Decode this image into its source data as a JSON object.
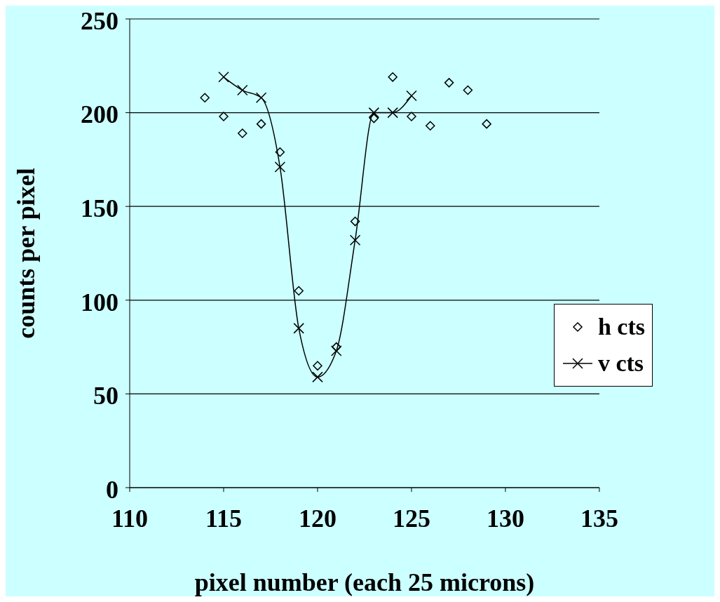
{
  "chart_data": {
    "type": "scatter",
    "xlabel": "pixel number (each 25 microns)",
    "ylabel": "counts per pixel",
    "xlim": [
      110,
      135
    ],
    "xticks": [
      110,
      115,
      120,
      125,
      130,
      135
    ],
    "ylim": [
      0,
      250
    ],
    "yticks": [
      0,
      50,
      100,
      150,
      200,
      250
    ],
    "grid": "y",
    "legend": "right",
    "series": [
      {
        "name": "h cts",
        "type": "scatter",
        "marker": "diamond",
        "color": "#000000",
        "x": [
          114,
          115,
          116,
          117,
          118,
          119,
          120,
          121,
          122,
          123,
          124,
          125,
          126,
          127,
          128,
          129
        ],
        "values": [
          208,
          198,
          189,
          194,
          179,
          105,
          65,
          75,
          142,
          197,
          219,
          198,
          193,
          216,
          212,
          194
        ]
      },
      {
        "name": "v cts",
        "type": "line",
        "marker": "cross",
        "line_style": "solid",
        "color": "#000000",
        "x": [
          115,
          116,
          117,
          118,
          119,
          120,
          121,
          122,
          123,
          124,
          125
        ],
        "values": [
          219,
          212,
          208,
          171,
          85,
          59,
          73,
          132,
          200,
          200,
          209
        ]
      }
    ]
  }
}
